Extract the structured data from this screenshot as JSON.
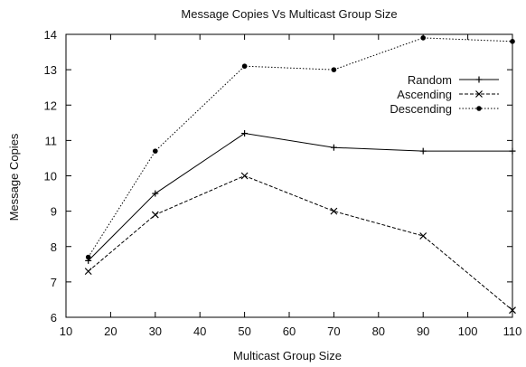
{
  "chart_data": {
    "type": "line",
    "title": "Message Copies Vs Multicast Group Size",
    "xlabel": "Multicast Group Size",
    "ylabel": "Message Copies",
    "xlim": [
      10,
      110
    ],
    "ylim": [
      6,
      14
    ],
    "xticks": [
      10,
      20,
      30,
      40,
      50,
      60,
      70,
      80,
      90,
      100,
      110
    ],
    "yticks": [
      6,
      7,
      8,
      9,
      10,
      11,
      12,
      13,
      14
    ],
    "grid": false,
    "legend_position": "top-right",
    "series": [
      {
        "name": "Random",
        "style": "solid",
        "marker": "plus",
        "x": [
          15,
          30,
          50,
          70,
          90,
          110
        ],
        "y": [
          7.6,
          9.5,
          11.2,
          10.8,
          10.7,
          10.7
        ]
      },
      {
        "name": "Ascending",
        "style": "dashed",
        "marker": "cross",
        "x": [
          15,
          30,
          50,
          70,
          90,
          110
        ],
        "y": [
          7.3,
          8.9,
          10.0,
          9.0,
          8.3,
          6.2
        ]
      },
      {
        "name": "Descending",
        "style": "dotted",
        "marker": "star",
        "x": [
          15,
          30,
          50,
          70,
          90,
          110
        ],
        "y": [
          7.7,
          10.7,
          13.1,
          13.0,
          13.9,
          13.8
        ]
      }
    ]
  }
}
